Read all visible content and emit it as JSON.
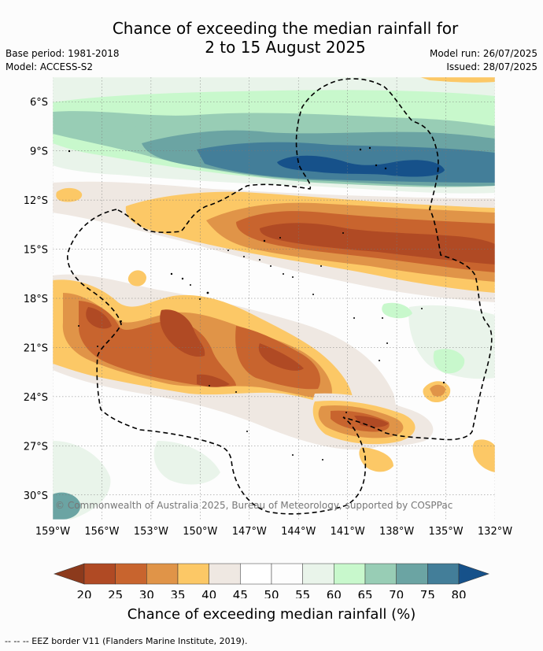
{
  "title": {
    "line1": "Chance of exceeding the median rainfall for",
    "line2": "2 to 15 August 2025"
  },
  "meta": {
    "base_period": "Base period: 1981-2018",
    "model": "Model: ACCESS-S2",
    "model_run": "Model run: 26/07/2025",
    "issued": "Issued: 28/07/2025"
  },
  "map": {
    "lat_labels": [
      "6°S",
      "9°S",
      "12°S",
      "15°S",
      "18°S",
      "21°S",
      "24°S",
      "27°S",
      "30°S"
    ],
    "lat_values": [
      6,
      9,
      12,
      15,
      18,
      21,
      24,
      27,
      30
    ],
    "lon_labels": [
      "159°W",
      "156°W",
      "153°W",
      "150°W",
      "147°W",
      "144°W",
      "141°W",
      "138°W",
      "135°W",
      "132°W"
    ],
    "lon_values": [
      159,
      156,
      153,
      150,
      147,
      144,
      141,
      138,
      135,
      132
    ],
    "extent": {
      "lon_west": 159,
      "lon_east": 132,
      "lat_north": 4.5,
      "lat_south": 31.5
    },
    "copyright": "© Commonwealth of Australia 2025, Bureau of Meteorology, supported by COSPPac"
  },
  "colorbar": {
    "ticks": [
      "20",
      "25",
      "30",
      "35",
      "40",
      "45",
      "50",
      "55",
      "60",
      "65",
      "70",
      "75",
      "80"
    ],
    "colors": [
      "#8c3a1c",
      "#b04a24",
      "#c8642e",
      "#e09448",
      "#fcc866",
      "#efe8e2",
      "#ffffff",
      "#fdfdfd",
      "#e9f4ea",
      "#c8f8cc",
      "#98cdb5",
      "#6ba4a3",
      "#437e99",
      "#16518a"
    ],
    "label": "Chance of exceeding median rainfall (%)"
  },
  "footnote": "--  --  -- EEZ border V11 (Flanders Marine Institute, 2019)."
}
